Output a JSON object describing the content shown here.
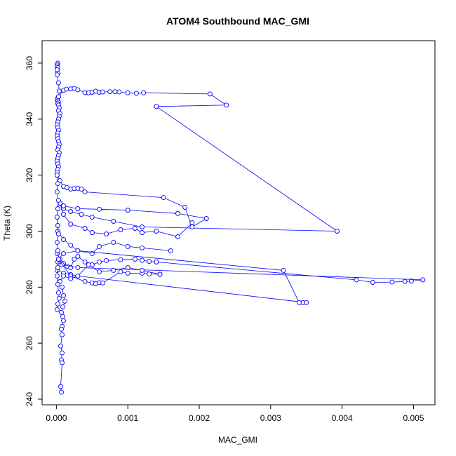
{
  "chart_data": {
    "type": "line",
    "title": "ATOM4 Southbound MAC_GMI",
    "xlabel": "MAC_GMI",
    "ylabel": "Theta (K)",
    "xlim": [
      -0.0002,
      0.0053
    ],
    "ylim": [
      238,
      368
    ],
    "xticks": [
      {
        "value": 0,
        "label": "0.000"
      },
      {
        "value": 0.001,
        "label": "0.001"
      },
      {
        "value": 0.002,
        "label": "0.002"
      },
      {
        "value": 0.003,
        "label": "0.003"
      },
      {
        "value": 0.004,
        "label": "0.004"
      },
      {
        "value": 0.005,
        "label": "0.005"
      }
    ],
    "yticks": [
      {
        "value": 240,
        "label": "240"
      },
      {
        "value": 260,
        "label": "260"
      },
      {
        "value": 280,
        "label": "280"
      },
      {
        "value": 300,
        "label": "300"
      },
      {
        "value": 320,
        "label": "320"
      },
      {
        "value": 340,
        "label": "340"
      },
      {
        "value": 360,
        "label": "360"
      }
    ],
    "grid": false,
    "legend": "none",
    "color": "#0000ff",
    "marker": "open-circle",
    "series": [
      {
        "x": [
          2e-05,
          1e-05,
          1e-05,
          2e-05,
          1e-05,
          2e-05,
          1e-05,
          3e-05,
          4e-05,
          3e-05,
          2e-05,
          1e-05,
          2e-05,
          3e-05,
          2e-05,
          3e-05,
          4e-05,
          3e-05,
          5e-05,
          4e-05,
          3e-05,
          2e-05,
          1e-05,
          2e-05,
          3e-05,
          2e-05,
          1e-05,
          2e-05,
          3e-05,
          4e-05,
          3e-05,
          2e-05,
          4e-05,
          3e-05,
          2e-05,
          1e-05,
          2e-05,
          3e-05,
          2e-05,
          1e-05
        ],
        "y": [
          360,
          359.5,
          359,
          358.4,
          357.6,
          356.4,
          355.8,
          353,
          350,
          348,
          347.5,
          347,
          346.5,
          346,
          345.5,
          345,
          344,
          343,
          342,
          341,
          340,
          339,
          338,
          337,
          336,
          335,
          334,
          333,
          332,
          331,
          330,
          329,
          328,
          327,
          326,
          325,
          324,
          323,
          322,
          321
        ]
      },
      {
        "x": [
          3e-05,
          0.0001,
          0.00014,
          0.0002,
          0.00025,
          0.0003,
          0.0004,
          0.00045,
          0.0005,
          0.00055,
          0.0006,
          0.00065,
          0.00075,
          0.00082,
          0.00088,
          0.001,
          0.00112,
          0.00122,
          0.00215,
          0.00238,
          0.0014
        ],
        "y": [
          348,
          350.3,
          350.7,
          350.8,
          351,
          350.5,
          349.5,
          349.4,
          349.6,
          350,
          349.6,
          349.7,
          349.8,
          349.8,
          349.7,
          349.4,
          349.2,
          349.4,
          349,
          345,
          344.5
        ]
      },
      {
        "x": [
          0.0014,
          0.00393,
          0.0012,
          0.0008,
          0.0005,
          0.00035,
          0.0002,
          0.0001
        ],
        "y": [
          344.5,
          300,
          301.5,
          303.5,
          305,
          306,
          307,
          308
        ]
      },
      {
        "x": [
          1e-05,
          5e-05,
          0.0001,
          0.00015,
          0.0002,
          0.00025,
          0.0003,
          0.00035,
          0.0004,
          0.0015,
          0.0018,
          0.0019,
          0.0021,
          0.0017
        ],
        "y": [
          320,
          318,
          316,
          315.5,
          315,
          315.2,
          315.3,
          315,
          314,
          312,
          308.5,
          301.5,
          304.5,
          306.3
        ]
      },
      {
        "x": [
          0.0017,
          0.001,
          0.0006,
          0.0003,
          0.0001,
          5e-05
        ],
        "y": [
          306.3,
          307.5,
          307.8,
          308,
          309,
          310
        ]
      },
      {
        "x": [
          5e-05,
          0.0001,
          0.0002,
          0.0004,
          0.0005,
          0.0007,
          0.0009,
          0.0011,
          0.0012,
          0.0014,
          0.0017,
          0.0019
        ],
        "y": [
          310,
          306,
          302.5,
          301,
          299.5,
          299,
          300.5,
          301,
          299.5,
          300,
          298,
          303
        ]
      },
      {
        "x": [
          2e-05,
          0.0001,
          0.0002,
          0.0003,
          0.0005,
          0.0006,
          0.0008,
          0.001,
          0.0012,
          0.0016
        ],
        "y": [
          300,
          297,
          295,
          293,
          292,
          294.5,
          296,
          294.5,
          294,
          293
        ]
      },
      {
        "x": [
          1e-05,
          5e-05,
          0.0001,
          0.00015,
          0.0002,
          0.00025,
          0.0003,
          0.0004,
          0.0005,
          0.0006,
          0.0007,
          0.0009,
          0.0011,
          0.0012,
          0.0013,
          0.0014
        ],
        "y": [
          292,
          290,
          288.5,
          287.5,
          287,
          290,
          291,
          289,
          288,
          289,
          289.5,
          289.8,
          290,
          289.6,
          289.2,
          289
        ]
      },
      {
        "x": [
          0.0014,
          0.0042,
          0.00443,
          0.0047,
          0.00488,
          0.00497,
          0.00513
        ],
        "y": [
          289,
          282.6,
          281.7,
          281.8,
          282,
          282.2,
          282.6
        ]
      },
      {
        "x": [
          0.00513,
          0.0003,
          8e-05,
          2e-05
        ],
        "y": [
          282.6,
          287,
          288,
          289
        ]
      },
      {
        "x": [
          1e-05,
          0.0001,
          0.0002,
          0.0003,
          0.0035,
          0.00345,
          0.0034,
          0.00318,
          0.0003,
          0.0001,
          3e-05
        ],
        "y": [
          286,
          285,
          284.5,
          284,
          274.5,
          274.5,
          274.5,
          286,
          293,
          292,
          290
        ]
      },
      {
        "x": [
          3e-05,
          0.0002,
          0.0004,
          0.0005,
          0.00055,
          0.0006,
          0.00065,
          0.0009,
          0.001,
          0.0012,
          0.0013,
          0.00145
        ],
        "y": [
          290,
          284,
          282,
          281.5,
          281.2,
          281.6,
          281.5,
          285.5,
          285,
          285,
          284.7,
          284.6
        ]
      },
      {
        "x": [
          0.00145,
          0.0012,
          0.001,
          0.0008,
          0.0006,
          0.00045,
          0.0003,
          0.0002,
          0.0001,
          5e-05
        ],
        "y": [
          284.6,
          286,
          287,
          286,
          285.5,
          288,
          284,
          283,
          284,
          282
        ]
      },
      {
        "x": [
          1e-05,
          2e-05,
          1e-05,
          3e-05,
          2e-05,
          1e-05,
          2e-05,
          3e-05,
          1e-05,
          2e-05,
          3e-05,
          2e-05,
          1e-05,
          2e-05,
          3e-05,
          4e-05,
          2e-05,
          1e-05
        ],
        "y": [
          320,
          317,
          314,
          311,
          308,
          305,
          302,
          299,
          296,
          293,
          290,
          287,
          284,
          281,
          278,
          276,
          274,
          272
        ]
      },
      {
        "x": [
          8e-05,
          0.0001,
          0.00012,
          9e-05,
          7e-05,
          9e-05,
          0.0001,
          8e-05,
          7e-05,
          8e-05,
          6e-05,
          8e-05,
          7e-05,
          8e-05,
          6e-05,
          7e-05
        ],
        "y": [
          280,
          277,
          275,
          273,
          271,
          269.5,
          268,
          266,
          265,
          263,
          259,
          256.5,
          254,
          253,
          244.5,
          242.5
        ]
      }
    ]
  }
}
